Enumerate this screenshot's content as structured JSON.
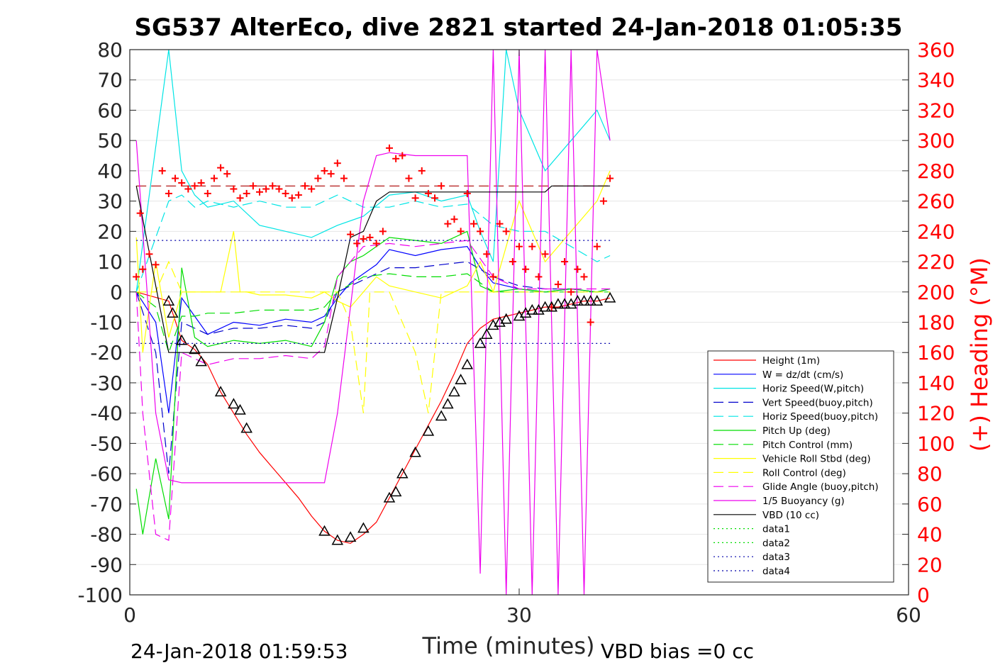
{
  "chart_data": {
    "type": "line",
    "title": "SG537 AlterEco, dive 2821 started 24-Jan-2018 01:05:35",
    "xlabel": "Time (minutes)",
    "ylabel_right": "(+) Heading (°M)",
    "xlim": [
      0,
      60
    ],
    "ylim": [
      -100,
      80
    ],
    "ylim_right": [
      0,
      360
    ],
    "x_ticks": [
      "0",
      "30",
      "60"
    ],
    "y_ticks": [
      "80",
      "70",
      "60",
      "50",
      "40",
      "30",
      "20",
      "10",
      "0",
      "-10",
      "-20",
      "-30",
      "-40",
      "-50",
      "-60",
      "-70",
      "-80",
      "-90",
      "-100"
    ],
    "y_right_ticks": [
      "360",
      "340",
      "320",
      "300",
      "280",
      "260",
      "240",
      "220",
      "200",
      "180",
      "160",
      "140",
      "120",
      "100",
      "80",
      "60",
      "40",
      "20",
      "0"
    ],
    "grid": "horizontal",
    "legend_position": "bottom-right",
    "footer_left": "24-Jan-2018 01:59:53",
    "footer_right": "VBD bias =0 cc",
    "colors": {
      "height": "#ff0000",
      "w": "#0000ff",
      "horiz_speed": "#00e5e5",
      "pitch": "#00dd00",
      "roll": "#ffff00",
      "buoyancy": "#ee00ee",
      "vbd": "#000000",
      "heading": "#ff0000",
      "data3": "#0000aa"
    },
    "series": [
      {
        "name": "Height (1m)",
        "color": "#ff0000",
        "dash": "solid",
        "x": [
          0.5,
          3,
          4,
          5,
          6,
          7,
          8,
          9,
          10,
          11,
          12,
          13,
          14,
          15,
          16,
          17,
          18,
          19,
          20,
          21,
          22,
          23,
          24,
          25,
          26,
          27,
          28,
          29,
          30,
          31,
          32,
          33,
          34,
          35,
          36,
          37
        ],
        "y": [
          0,
          -3,
          -16,
          -19,
          -24,
          -33,
          -40,
          -47,
          -53,
          -58,
          -63,
          -68,
          -74,
          -79,
          -82,
          -83,
          -80,
          -76,
          -68,
          -60,
          -52,
          -44,
          -36,
          -27,
          -17,
          -12,
          -9,
          -8,
          -7,
          -6,
          -5,
          -5,
          -4,
          -3,
          -3,
          -2
        ]
      },
      {
        "name": "W = dz/dt (cm/s)",
        "color": "#0000ff",
        "dash": "solid",
        "x": [
          0.5,
          2,
          3,
          4,
          5,
          6,
          8,
          10,
          12,
          14,
          15,
          16,
          17,
          18,
          19,
          20,
          22,
          24,
          26,
          27,
          28,
          29,
          30,
          32,
          34,
          36,
          37
        ],
        "y": [
          0,
          -10,
          -40,
          -2,
          -8,
          -14,
          -10,
          -11,
          -9,
          -10,
          -8,
          -2,
          3,
          6,
          9,
          14,
          12,
          14,
          15,
          8,
          3,
          2,
          1,
          0,
          1,
          0,
          1
        ]
      },
      {
        "name": "Horiz Speed(W,pitch)",
        "color": "#00e5e5",
        "dash": "solid",
        "x": [
          0.5,
          3,
          3.5,
          4,
          5,
          6,
          8,
          10,
          12,
          14,
          15,
          16,
          18,
          20,
          22,
          24,
          26,
          27,
          28,
          29,
          30,
          32,
          34,
          36,
          37
        ],
        "y": [
          0,
          80,
          60,
          40,
          32,
          28,
          30,
          22,
          20,
          18,
          20,
          22,
          25,
          32,
          33,
          30,
          32,
          20,
          10,
          80,
          60,
          40,
          50,
          60,
          50
        ]
      },
      {
        "name": "Vert Speed(buoy,pitch)",
        "color": "#0000cc",
        "dash": "dashed",
        "x": [
          0.5,
          2,
          3,
          4,
          5,
          6,
          8,
          10,
          12,
          14,
          15,
          16,
          18,
          20,
          22,
          24,
          26,
          28,
          30,
          32,
          34,
          36,
          37
        ],
        "y": [
          0,
          -20,
          -60,
          -10,
          -12,
          -14,
          -12,
          -12,
          -11,
          -12,
          -10,
          0,
          4,
          8,
          8,
          9,
          10,
          5,
          2,
          1,
          1,
          0,
          1
        ]
      },
      {
        "name": "Horiz Speed(buoy,pitch)",
        "color": "#00e5e5",
        "dash": "dashed",
        "x": [
          0.5,
          3,
          4,
          5,
          6,
          8,
          10,
          12,
          14,
          15,
          16,
          18,
          20,
          22,
          24,
          26,
          28,
          30,
          32,
          34,
          36,
          37
        ],
        "y": [
          0,
          30,
          32,
          28,
          30,
          28,
          30,
          28,
          28,
          30,
          32,
          28,
          28,
          30,
          28,
          29,
          22,
          20,
          20,
          15,
          10,
          12
        ]
      },
      {
        "name": "Pitch Up (deg)",
        "color": "#00dd00",
        "dash": "solid",
        "x": [
          0.5,
          1,
          2,
          3,
          4,
          5,
          6,
          8,
          10,
          12,
          14,
          15,
          16,
          17,
          18,
          20,
          22,
          24,
          26,
          27,
          28,
          30,
          32,
          34,
          36,
          37
        ],
        "y": [
          -65,
          -80,
          -55,
          -75,
          8,
          -15,
          -18,
          -16,
          -17,
          -16,
          -18,
          -10,
          5,
          10,
          12,
          18,
          17,
          16,
          20,
          2,
          0,
          1,
          0,
          1,
          0,
          1
        ]
      },
      {
        "name": "Pitch Control (mm)",
        "color": "#00dd00",
        "dash": "dashed",
        "x": [
          0.5,
          2,
          3,
          4,
          5,
          6,
          8,
          10,
          12,
          14,
          15,
          16,
          18,
          20,
          22,
          24,
          26,
          28,
          30,
          32,
          34,
          36,
          37
        ],
        "y": [
          0,
          -5,
          -20,
          -8,
          -8,
          -7,
          -7,
          -6,
          -6,
          -6,
          -5,
          0,
          5,
          6,
          5,
          5,
          6,
          0,
          0,
          0,
          0,
          0,
          0
        ]
      },
      {
        "name": "Vehicle Roll Stbd (deg)",
        "color": "#ffff00",
        "dash": "solid",
        "x": [
          0.5,
          1,
          2,
          3,
          4,
          5,
          6,
          7,
          8,
          8.5,
          9,
          10,
          12,
          14,
          15,
          16,
          17,
          18,
          19,
          20,
          22,
          24,
          26,
          27,
          28,
          30,
          32,
          34,
          36,
          37
        ],
        "y": [
          18,
          -20,
          10,
          -15,
          0,
          0,
          0,
          0,
          20,
          0,
          0,
          -1,
          -1,
          -2,
          0,
          -3,
          -5,
          0,
          5,
          2,
          0,
          -2,
          2,
          10,
          0,
          30,
          10,
          20,
          30,
          40
        ]
      },
      {
        "name": "Roll Control (deg)",
        "color": "#ffff00",
        "dash": "dashed",
        "x": [
          0.5,
          2,
          3,
          4,
          6,
          8,
          10,
          12,
          14,
          16,
          17,
          18,
          18.5,
          19,
          20,
          22,
          23,
          24,
          26,
          28,
          30,
          32,
          34,
          36,
          37
        ],
        "y": [
          0,
          0,
          10,
          0,
          0,
          0,
          0,
          0,
          0,
          0,
          -10,
          -40,
          0,
          0,
          0,
          -20,
          -40,
          0,
          0,
          0,
          0,
          0,
          0,
          0,
          0
        ]
      },
      {
        "name": "Glide Angle (buoy,pitch)",
        "color": "#ee00ee",
        "dash": "dashed",
        "x": [
          0.5,
          1,
          2,
          3,
          4,
          5,
          6,
          8,
          10,
          12,
          14,
          15,
          16,
          18,
          20,
          22,
          24,
          26,
          28,
          30,
          32,
          34,
          36,
          37
        ],
        "y": [
          0,
          -40,
          -80,
          -82,
          -20,
          -22,
          -24,
          -22,
          -22,
          -21,
          -22,
          -18,
          5,
          15,
          16,
          15,
          16,
          17,
          5,
          1,
          1,
          1,
          1,
          1
        ]
      },
      {
        "name": "1/5 Buoyancy (g)",
        "color": "#ee00ee",
        "dash": "solid",
        "x": [
          0.5,
          2,
          3,
          4,
          6,
          8,
          10,
          12,
          14,
          15,
          16,
          18,
          19,
          20,
          22,
          24,
          26,
          27,
          28,
          29,
          30,
          31,
          32,
          33,
          34,
          35,
          36,
          37
        ],
        "y": [
          50,
          -40,
          -62,
          -63,
          -63,
          -63,
          -63,
          -63,
          -63,
          -63,
          -40,
          30,
          45,
          46,
          45,
          45,
          45,
          -93,
          80,
          -100,
          80,
          -100,
          80,
          -100,
          80,
          -100,
          80,
          50
        ]
      },
      {
        "name": "VBD (10 cc)",
        "color": "#000000",
        "dash": "solid",
        "x": [
          0.5,
          3,
          4,
          6,
          8,
          10,
          12,
          14,
          15,
          16,
          17,
          18,
          19,
          20,
          22,
          24,
          26,
          28,
          30,
          32,
          32.5,
          34,
          36,
          37
        ],
        "y": [
          35,
          -20,
          -20,
          -20,
          -20,
          -20,
          -20,
          -20,
          -20,
          -2,
          18,
          20,
          30,
          33,
          33,
          33,
          33,
          33,
          33,
          33,
          35,
          35,
          35,
          35
        ]
      },
      {
        "name": "data1",
        "color": "#00dd00",
        "dash": "dotted",
        "x": [],
        "y": []
      },
      {
        "name": "data2",
        "color": "#00dd00",
        "dash": "dotted",
        "x": [],
        "y": []
      },
      {
        "name": "data3",
        "color": "#0000aa",
        "dash": "dotted",
        "x": [
          0.5,
          37
        ],
        "y": [
          17,
          17
        ]
      },
      {
        "name": "data4",
        "color": "#0000aa",
        "dash": "dotted",
        "x": [
          0.5,
          37
        ],
        "y": [
          -17,
          -17
        ]
      }
    ],
    "reference_lines": [
      {
        "color": "#aa0000",
        "dash": "dashed",
        "x": [
          0.5,
          37
        ],
        "y": [
          35,
          35
        ]
      }
    ],
    "heading_markers": {
      "marker": "+",
      "color": "#ff0000",
      "axis": "right",
      "x": [
        0.5,
        0.8,
        1,
        1.5,
        2,
        2.5,
        3,
        3.5,
        4,
        4.5,
        5,
        5.5,
        6,
        6.5,
        7,
        7.5,
        8,
        8.5,
        9,
        9.5,
        10,
        10.5,
        11,
        11.5,
        12,
        12.5,
        13,
        13.5,
        14,
        14.5,
        15,
        15.5,
        16,
        16.5,
        17,
        17.5,
        18,
        18.5,
        19,
        19.5,
        20,
        20.5,
        21,
        21.5,
        22,
        22.5,
        23,
        23.5,
        24,
        24.5,
        25,
        25.5,
        26,
        26.5,
        27,
        27.5,
        28,
        28.5,
        29,
        29.5,
        30,
        30.5,
        31,
        31.5,
        32,
        32.5,
        33,
        33.5,
        34,
        34.5,
        35,
        35.5,
        36,
        36.5,
        37
      ],
      "y": [
        210,
        252,
        215,
        225,
        218,
        280,
        265,
        275,
        272,
        268,
        270,
        272,
        265,
        275,
        282,
        278,
        268,
        262,
        265,
        270,
        266,
        268,
        270,
        268,
        265,
        262,
        264,
        270,
        268,
        275,
        280,
        278,
        285,
        275,
        238,
        232,
        235,
        236,
        232,
        240,
        295,
        288,
        290,
        275,
        262,
        280,
        265,
        262,
        270,
        245,
        248,
        240,
        265,
        245,
        240,
        225,
        210,
        245,
        240,
        220,
        230,
        215,
        230,
        210,
        225,
        190,
        205,
        220,
        200,
        215,
        210,
        180,
        230,
        260,
        275
      ]
    },
    "depth_markers": {
      "marker": "triangle",
      "color": "#000000",
      "x": [
        3,
        3.3,
        4,
        5,
        5.5,
        7,
        8,
        8.5,
        9,
        15,
        16,
        17,
        18,
        20,
        20.5,
        21,
        22,
        23,
        24,
        24.5,
        25,
        25.5,
        26,
        27,
        27.5,
        28,
        28.5,
        29,
        30,
        30.5,
        31,
        31.5,
        32,
        32.5,
        33,
        33.5,
        34,
        34.5,
        35,
        35.5,
        36,
        37
      ],
      "y": [
        -3,
        -7,
        -16,
        -19,
        -23,
        -33,
        -37,
        -39,
        -45,
        -79,
        -82,
        -81,
        -78,
        -68,
        -66,
        -60,
        -53,
        -46,
        -41,
        -37,
        -33,
        -29,
        -24,
        -17,
        -14,
        -11,
        -10,
        -9,
        -8,
        -7,
        -6,
        -6,
        -5,
        -5,
        -4,
        -4,
        -4,
        -3,
        -3,
        -3,
        -3,
        -2
      ]
    }
  }
}
